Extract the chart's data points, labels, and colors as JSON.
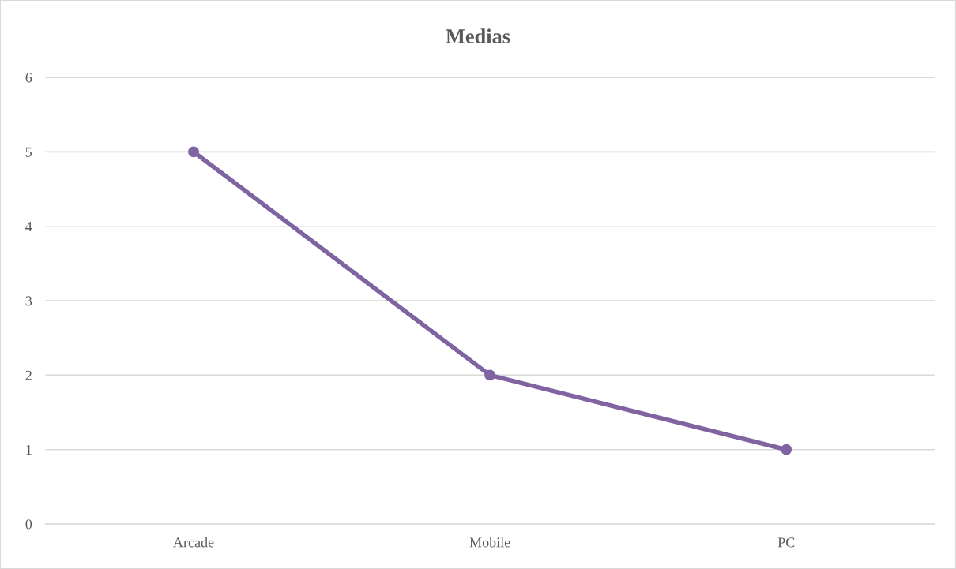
{
  "chart_data": {
    "type": "line",
    "title": "Medias",
    "categories": [
      "Arcade",
      "Mobile",
      "PC"
    ],
    "series": [
      {
        "color": "#8064a2",
        "values": [
          5,
          2,
          1
        ]
      }
    ],
    "ylim": [
      0,
      6
    ],
    "yticks": [
      0,
      1,
      2,
      3,
      4,
      5,
      6
    ],
    "grid": "y",
    "marker": "circle",
    "line_style": "solid",
    "legend": false
  }
}
